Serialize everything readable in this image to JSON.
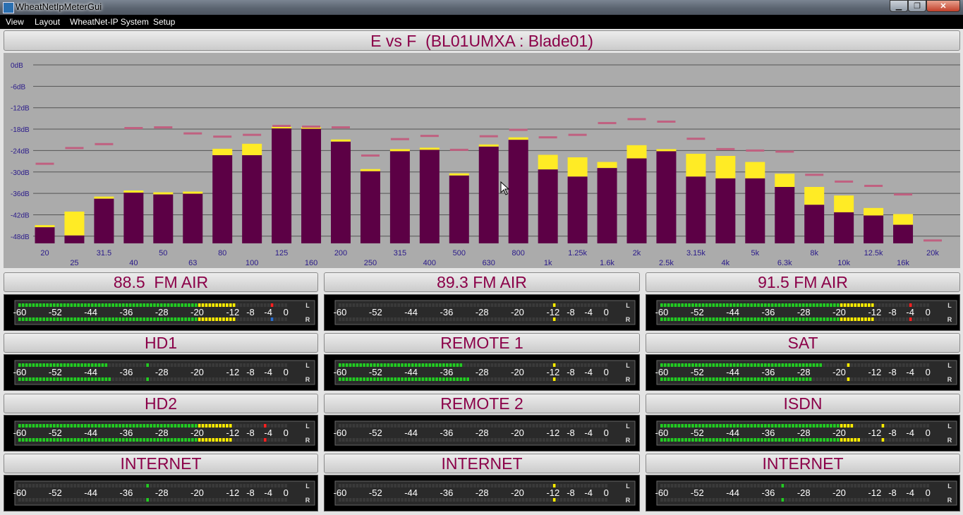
{
  "window": {
    "title": "WheatNetIpMeterGui",
    "minimize_glyph": "▁",
    "maximize_glyph": "❐",
    "close_glyph": "✕"
  },
  "menu": [
    "View",
    "Layout",
    "WheatNet-IP System",
    "Setup"
  ],
  "chart_header": "E vs F  (BL01UMXA : Blade01)",
  "chart_data": {
    "type": "bar",
    "ylim": [
      -50,
      0
    ],
    "y_ticks": [
      "0dB",
      "-6dB",
      "-12dB",
      "-18dB",
      "-24dB",
      "-30dB",
      "-36dB",
      "-42dB",
      "-48dB"
    ],
    "y_tick_values": [
      0,
      -6,
      -12,
      -18,
      -24,
      -30,
      -36,
      -42,
      -48
    ],
    "categories": [
      "20",
      "25",
      "31.5",
      "40",
      "50",
      "63",
      "80",
      "100",
      "125",
      "160",
      "200",
      "250",
      "315",
      "400",
      "500",
      "630",
      "800",
      "1k",
      "1.25k",
      "1.6k",
      "2k",
      "2.5k",
      "3.15k",
      "4k",
      "5k",
      "6.3k",
      "8k",
      "10k",
      "12.5k",
      "16k",
      "20k"
    ],
    "grid": true,
    "series": [
      {
        "values": [
          -45.5,
          -47.8,
          -37.5,
          -35.8,
          -36.3,
          -36.1,
          -25.3,
          -25.3,
          -17.8,
          -17.9,
          -21.5,
          -29.8,
          -24.2,
          -23.8,
          -31.0,
          -22.9,
          -21.0,
          -29.3,
          -31.3,
          -28.9,
          -26.2,
          -24.2,
          -31.3,
          -31.8,
          -31.8,
          -34.2,
          -39.2,
          -41.3,
          -42.2,
          -44.8,
          -50
        ],
        "color": "#5c0045"
      },
      {
        "values": [
          -44.9,
          -41.1,
          -36.9,
          -35.2,
          -35.7,
          -35.5,
          -23.5,
          -22.1,
          -17.3,
          -17.4,
          -20.9,
          -29.2,
          -23.6,
          -23.2,
          -30.4,
          -22.3,
          -20.3,
          -25.2,
          -25.9,
          -27.2,
          -22.5,
          -23.6,
          -24.9,
          -25.5,
          -27.2,
          -30.5,
          -34.2,
          -36.6,
          -40.1,
          -41.8,
          -50
        ],
        "color": "#ffeb25"
      },
      {
        "values": [
          -27.6,
          -23.2,
          -22.1,
          -17.6,
          -17.4,
          -19.1,
          -20.0,
          -19.5,
          -17.0,
          -17.2,
          -17.4,
          -25.3,
          -20.7,
          -19.8,
          -23.7,
          -19.9,
          -18.1,
          -20.2,
          -19.5,
          -16.2,
          -15.1,
          -15.8,
          -20.6,
          -23.5,
          -23.9,
          -24.2,
          -30.7,
          -32.6,
          -33.8,
          -36.2,
          -49.1
        ],
        "color": "#c06080"
      }
    ]
  },
  "meter_scale": [
    "-60",
    "-52",
    "-44",
    "-36",
    "-28",
    "-20",
    "-12",
    "-8",
    "-4",
    "0"
  ],
  "meter_scale_db": [
    -60,
    -52,
    -44,
    -36,
    -28,
    -20,
    -12,
    -8,
    -4,
    0
  ],
  "channel_letters": [
    "L",
    "R"
  ],
  "meter_colors": {
    "green": "#22cc22",
    "yellow": "#ffee00",
    "red": "#ff2020",
    "blue": "#2a6fd0",
    "off": "#3a3a3a"
  },
  "channels": [
    {
      "label": "88.5  FM AIR",
      "levels": [
        -11,
        -11
      ],
      "peaks": [
        -3,
        -3
      ],
      "peak_colors": [
        "red",
        "blue"
      ]
    },
    {
      "label": "89.3 FM AIR",
      "levels": [
        -70,
        -70
      ],
      "peaks": [
        -12,
        -12
      ],
      "peak_colors": [
        "yellow",
        "yellow"
      ]
    },
    {
      "label": "91.5 FM AIR",
      "levels": [
        -12,
        -12
      ],
      "peaks": [
        -4,
        -4
      ],
      "peak_colors": [
        "red",
        "red"
      ]
    },
    {
      "label": "HD1",
      "levels": [
        -40,
        -39
      ],
      "peaks": [
        -31,
        -31
      ],
      "peak_colors": [
        "green",
        "green"
      ]
    },
    {
      "label": "REMOTE 1",
      "levels": [
        -32,
        -31
      ],
      "peaks": [
        -12,
        -12
      ],
      "peak_colors": [
        "yellow",
        "yellow"
      ]
    },
    {
      "label": "SAT",
      "levels": [
        -24,
        -26
      ],
      "peaks": [
        -18,
        -18
      ],
      "peak_colors": [
        "yellow",
        "yellow"
      ]
    },
    {
      "label": "HD2",
      "levels": [
        -12,
        -12
      ],
      "peaks": [
        -5,
        -5
      ],
      "peak_colors": [
        "red",
        "red"
      ]
    },
    {
      "label": "REMOTE 2",
      "levels": [
        -70,
        -70
      ],
      "peaks": [
        -70,
        -70
      ],
      "peak_colors": [
        "green",
        "green"
      ]
    },
    {
      "label": "ISDN",
      "levels": [
        -17,
        -15
      ],
      "peaks": [
        -10,
        -10
      ],
      "peak_colors": [
        "yellow",
        "yellow"
      ]
    },
    {
      "label": "INTERNET",
      "levels": [
        -70,
        -70
      ],
      "peaks": [
        -31,
        -31
      ],
      "peak_colors": [
        "green",
        "green"
      ]
    },
    {
      "label": "INTERNET",
      "levels": [
        -70,
        -70
      ],
      "peaks": [
        -12,
        -12
      ],
      "peak_colors": [
        "yellow",
        "yellow"
      ]
    },
    {
      "label": "INTERNET",
      "levels": [
        -70,
        -70
      ],
      "peaks": [
        -33,
        -33
      ],
      "peak_colors": [
        "green",
        "green"
      ]
    }
  ]
}
